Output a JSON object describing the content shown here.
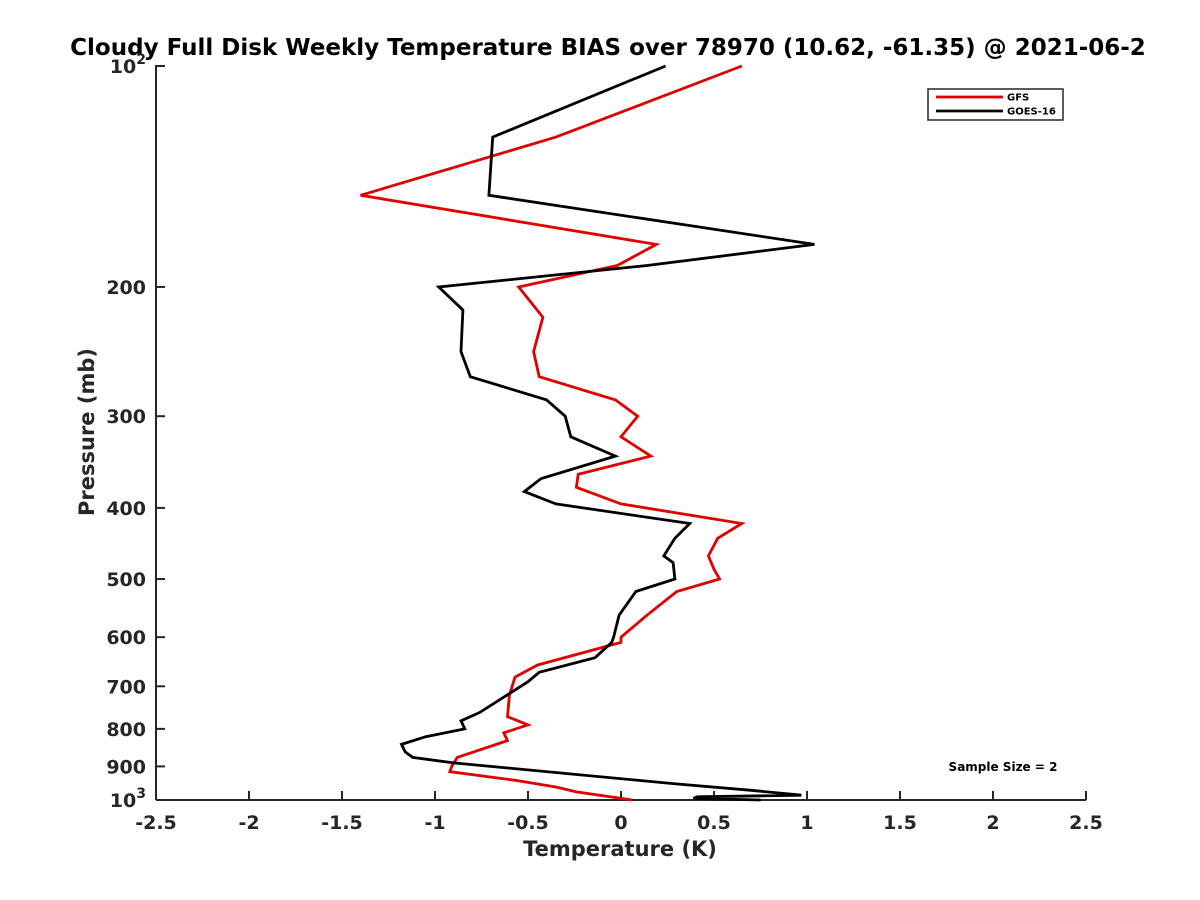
{
  "chart_data": {
    "type": "line",
    "title": "Cloudy Full Disk Weekly Temperature BIAS over 78970 (10.62, -61.35) @ 2021-06-2",
    "xlabel": "Temperature (K)",
    "ylabel": "Pressure (mb)",
    "xlim": [
      -2.5,
      2.5
    ],
    "ylim": [
      100,
      1000
    ],
    "y_scale": "log",
    "y_reversed": true,
    "grid": false,
    "legend_position": "top-right",
    "x_ticks": [
      -2.5,
      -2,
      -1.5,
      -1,
      -0.5,
      0,
      0.5,
      1,
      1.5,
      2,
      2.5
    ],
    "x_tick_labels": [
      "-2.5",
      "-2",
      "-1.5",
      "-1",
      "-0.5",
      "0",
      "0.5",
      "1",
      "1.5",
      "2",
      "2.5"
    ],
    "y_ticks": [
      100,
      200,
      300,
      400,
      500,
      600,
      700,
      800,
      900,
      1000
    ],
    "y_tick_labels": [
      {
        "base": "10",
        "exp": "2"
      },
      {
        "base": "200",
        "exp": ""
      },
      {
        "base": "300",
        "exp": ""
      },
      {
        "base": "400",
        "exp": ""
      },
      {
        "base": "500",
        "exp": ""
      },
      {
        "base": "600",
        "exp": ""
      },
      {
        "base": "700",
        "exp": ""
      },
      {
        "base": "800",
        "exp": ""
      },
      {
        "base": "900",
        "exp": ""
      },
      {
        "base": "10",
        "exp": "3"
      }
    ],
    "annotation": "Sample Size = 2",
    "series": [
      {
        "name": "GFS",
        "color": "#e00000",
        "points": [
          [
            0.65,
            100
          ],
          [
            -0.35,
            125
          ],
          [
            -1.4,
            150
          ],
          [
            0.19,
            175
          ],
          [
            -0.02,
            187
          ],
          [
            -0.55,
            200
          ],
          [
            -0.42,
            220
          ],
          [
            -0.47,
            245
          ],
          [
            -0.44,
            265
          ],
          [
            -0.03,
            285
          ],
          [
            0.09,
            300
          ],
          [
            0.0,
            320
          ],
          [
            0.16,
            340
          ],
          [
            -0.23,
            360
          ],
          [
            -0.24,
            375
          ],
          [
            0.0,
            395
          ],
          [
            0.65,
            420
          ],
          [
            0.52,
            440
          ],
          [
            0.47,
            465
          ],
          [
            0.5,
            485
          ],
          [
            0.53,
            500
          ],
          [
            0.3,
            520
          ],
          [
            0.14,
            560
          ],
          [
            0.0,
            600
          ],
          [
            0.0,
            610
          ],
          [
            -0.45,
            655
          ],
          [
            -0.57,
            680
          ],
          [
            -0.6,
            720
          ],
          [
            -0.61,
            770
          ],
          [
            -0.5,
            790
          ],
          [
            -0.63,
            810
          ],
          [
            -0.61,
            830
          ],
          [
            -0.88,
            875
          ],
          [
            -0.91,
            900
          ],
          [
            -0.92,
            915
          ],
          [
            -0.57,
            940
          ],
          [
            -0.35,
            960
          ],
          [
            -0.24,
            975
          ],
          [
            0.06,
            1000
          ]
        ]
      },
      {
        "name": "GOES-16",
        "color": "#000000",
        "points": [
          [
            0.24,
            100
          ],
          [
            -0.69,
            125
          ],
          [
            -0.71,
            150
          ],
          [
            1.04,
            175
          ],
          [
            0.14,
            187
          ],
          [
            -0.98,
            200
          ],
          [
            -0.85,
            215
          ],
          [
            -0.86,
            245
          ],
          [
            -0.81,
            265
          ],
          [
            -0.4,
            285
          ],
          [
            -0.3,
            300
          ],
          [
            -0.27,
            320
          ],
          [
            -0.03,
            340
          ],
          [
            -0.43,
            365
          ],
          [
            -0.52,
            380
          ],
          [
            -0.35,
            395
          ],
          [
            0.37,
            420
          ],
          [
            0.29,
            440
          ],
          [
            0.23,
            465
          ],
          [
            0.28,
            475
          ],
          [
            0.29,
            500
          ],
          [
            0.08,
            520
          ],
          [
            -0.01,
            560
          ],
          [
            -0.04,
            600
          ],
          [
            -0.05,
            610
          ],
          [
            -0.14,
            640
          ],
          [
            -0.44,
            670
          ],
          [
            -0.5,
            690
          ],
          [
            -0.76,
            760
          ],
          [
            -0.86,
            780
          ],
          [
            -0.84,
            800
          ],
          [
            -1.05,
            820
          ],
          [
            -1.18,
            840
          ],
          [
            -1.16,
            860
          ],
          [
            -1.12,
            875
          ],
          [
            -0.9,
            890
          ],
          [
            0.28,
            950
          ],
          [
            0.7,
            970
          ],
          [
            0.97,
            985
          ],
          [
            0.41,
            990
          ],
          [
            0.39,
            995
          ],
          [
            0.75,
            1000
          ]
        ]
      }
    ]
  }
}
